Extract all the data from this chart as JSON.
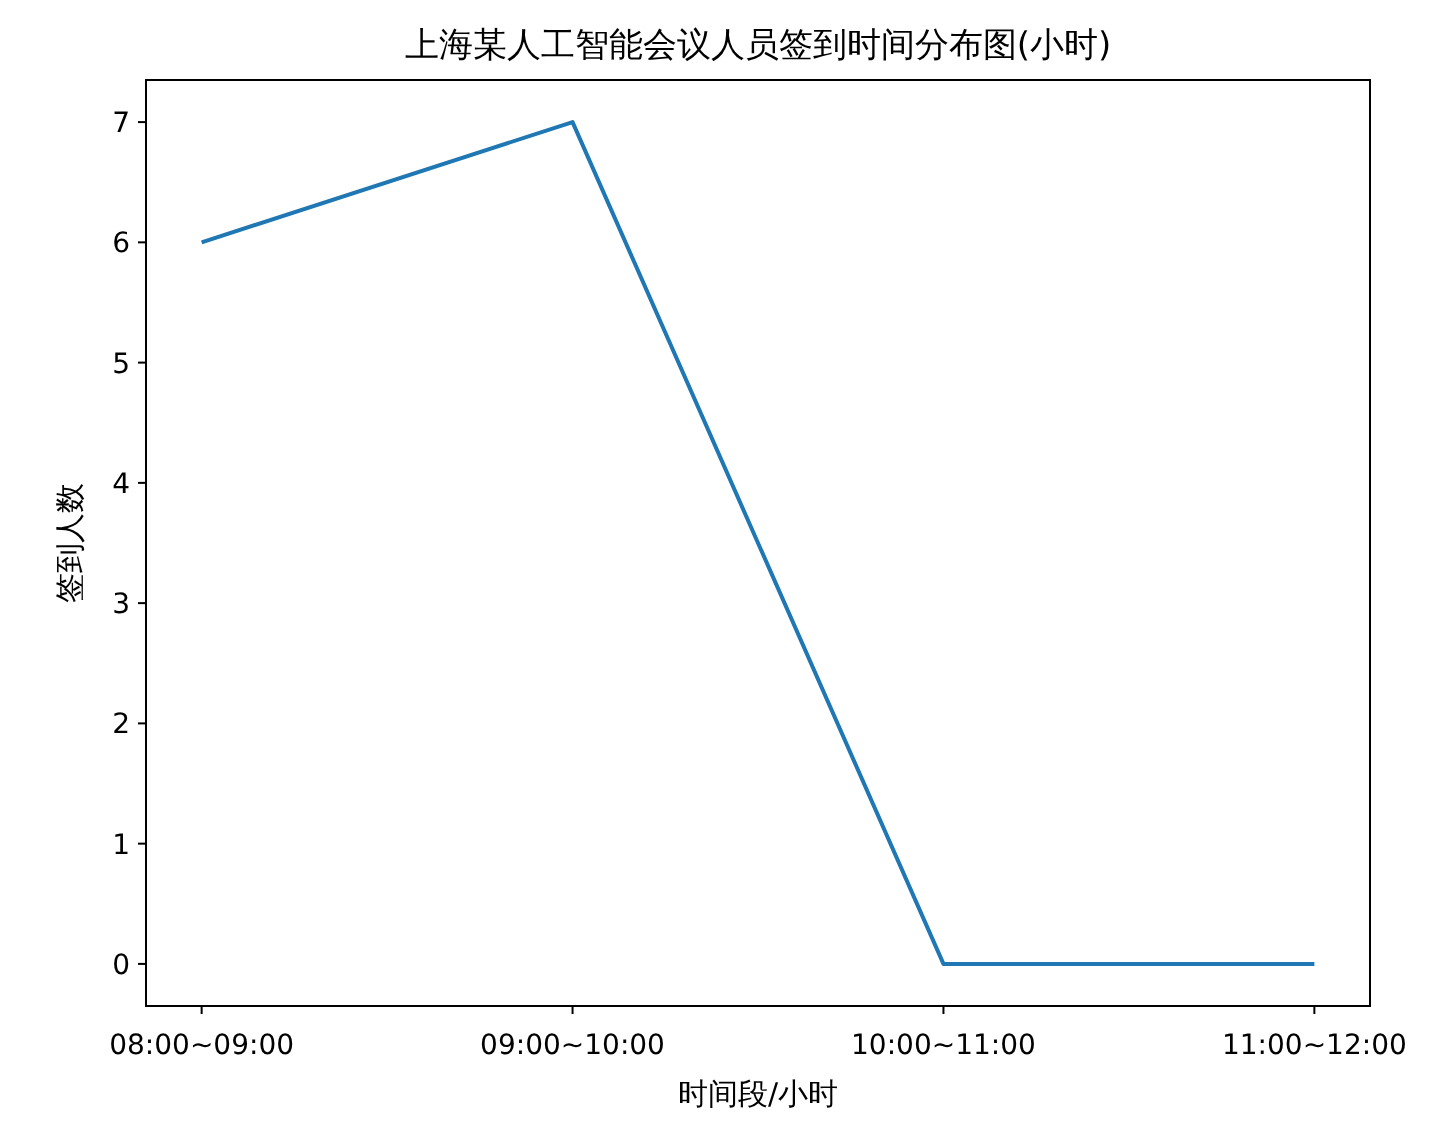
{
  "chart_data": {
    "type": "line",
    "title": "上海某人工智能会议人员签到时间分布图(小时)",
    "xlabel": "时间段/小时",
    "ylabel": "签到人数",
    "categories": [
      "08:00~09:00",
      "09:00~10:00",
      "10:00~11:00",
      "11:00~12:00"
    ],
    "series": [
      {
        "color": "#1f77b4",
        "values": [
          6,
          7,
          0,
          0
        ]
      }
    ],
    "ylim": [
      -0.35,
      7.35
    ],
    "yticks": [
      0,
      1,
      2,
      3,
      4,
      5,
      6,
      7
    ]
  }
}
